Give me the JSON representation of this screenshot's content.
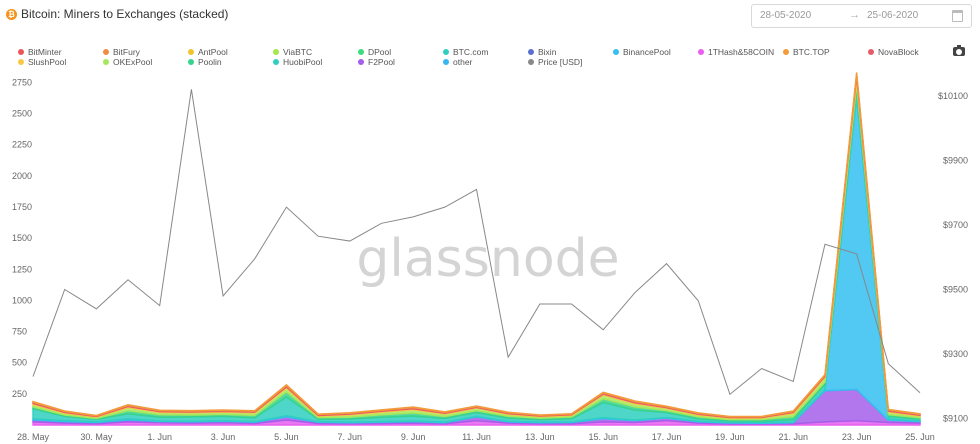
{
  "header": {
    "title": "Bitcoin: Miners to Exchanges (stacked)",
    "btc_symbol": "₿",
    "date_from": "28-05-2020",
    "date_arrow": "→",
    "date_to": "25-06-2020"
  },
  "watermark": "glassnode",
  "icons": {
    "header": "bitcoin-icon",
    "date": "calendar-icon",
    "export": "camera-icon"
  },
  "colors": {
    "BitMinter": "#e8575a",
    "BitFury": "#f28b46",
    "AntPool": "#f2c230",
    "ViaBTC": "#a4e84c",
    "DPool": "#3ddc7a",
    "BTC.com": "#2fcfc0",
    "Bixin": "#5a6fd0",
    "BinancePool": "#34bff0",
    "1THash&58COIN": "#e85ef0",
    "BTC.TOP": "#f39a3a",
    "NovaBlock": "#e85a6a",
    "SlushPool": "#f7c843",
    "OKExPool": "#a6e85b",
    "Poolin": "#37d28c",
    "HuobiPool": "#2fcfc0",
    "F2Pool": "#a55eea",
    "other": "#35b8f2",
    "Price [USD]": "#888888"
  },
  "chart_data": {
    "type": "area",
    "title": "Bitcoin: Miners to Exchanges (stacked)",
    "legend": [
      "BitMinter",
      "BitFury",
      "AntPool",
      "ViaBTC",
      "DPool",
      "BTC.com",
      "Bixin",
      "BinancePool",
      "1THash&58COIN",
      "BTC.TOP",
      "NovaBlock",
      "SlushPool",
      "OKExPool",
      "Poolin",
      "HuobiPool",
      "F2Pool",
      "other",
      "Price [USD]"
    ],
    "legend_position": "top",
    "x_tick_labels": [
      "28. May",
      "30. May",
      "1. Jun",
      "3. Jun",
      "5. Jun",
      "7. Jun",
      "9. Jun",
      "11. Jun",
      "13. Jun",
      "15. Jun",
      "17. Jun",
      "19. Jun",
      "21. Jun",
      "23. Jun",
      "25. Jun"
    ],
    "x": [
      "2020-05-28",
      "2020-05-29",
      "2020-05-30",
      "2020-05-31",
      "2020-06-01",
      "2020-06-02",
      "2020-06-03",
      "2020-06-04",
      "2020-06-05",
      "2020-06-06",
      "2020-06-07",
      "2020-06-08",
      "2020-06-09",
      "2020-06-10",
      "2020-06-11",
      "2020-06-12",
      "2020-06-13",
      "2020-06-14",
      "2020-06-15",
      "2020-06-16",
      "2020-06-17",
      "2020-06-18",
      "2020-06-19",
      "2020-06-20",
      "2020-06-21",
      "2020-06-22",
      "2020-06-23",
      "2020-06-24",
      "2020-06-25"
    ],
    "y_left": {
      "ticks": [
        250,
        500,
        750,
        1000,
        1250,
        1500,
        1750,
        2000,
        2250,
        2500,
        2750
      ],
      "range": [
        0,
        2850
      ]
    },
    "y_right": {
      "ticks": [
        "$9100",
        "$9300",
        "$9500",
        "$9700",
        "$9900",
        "$10100"
      ],
      "range": [
        9080,
        10180
      ]
    },
    "grid": false,
    "series": [
      {
        "name": "1THash&58COIN",
        "values": [
          25,
          15,
          10,
          25,
          18,
          15,
          18,
          12,
          40,
          12,
          10,
          12,
          15,
          10,
          35,
          15,
          10,
          10,
          25,
          20,
          35,
          15,
          8,
          8,
          10,
          25,
          35,
          20,
          15
        ]
      },
      {
        "name": "F2Pool",
        "values": [
          15,
          12,
          10,
          15,
          10,
          10,
          12,
          10,
          25,
          10,
          8,
          10,
          12,
          8,
          30,
          10,
          8,
          10,
          25,
          15,
          20,
          10,
          8,
          6,
          8,
          250,
          250,
          18,
          12
        ]
      },
      {
        "name": "BinancePool",
        "values": [
          10,
          8,
          5,
          10,
          5,
          5,
          5,
          5,
          10,
          5,
          5,
          5,
          5,
          5,
          5,
          5,
          5,
          5,
          10,
          5,
          5,
          5,
          5,
          5,
          5,
          10,
          2350,
          10,
          5
        ]
      },
      {
        "name": "HuobiPool",
        "values": [
          80,
          35,
          20,
          40,
          30,
          35,
          35,
          30,
          150,
          20,
          25,
          35,
          40,
          30,
          30,
          25,
          20,
          25,
          120,
          80,
          40,
          20,
          12,
          12,
          20,
          40,
          60,
          20,
          15
        ]
      },
      {
        "name": "Poolin",
        "values": [
          15,
          10,
          8,
          25,
          20,
          15,
          15,
          20,
          40,
          12,
          15,
          20,
          25,
          15,
          15,
          15,
          12,
          15,
          30,
          25,
          15,
          15,
          10,
          12,
          25,
          20,
          40,
          15,
          10
        ]
      },
      {
        "name": "OKExPool",
        "values": [
          20,
          15,
          10,
          25,
          18,
          18,
          18,
          20,
          30,
          12,
          18,
          20,
          25,
          20,
          20,
          15,
          12,
          12,
          30,
          25,
          18,
          15,
          12,
          12,
          25,
          35,
          40,
          20,
          15
        ]
      },
      {
        "name": "SlushPool",
        "values": [
          8,
          6,
          5,
          8,
          6,
          6,
          6,
          6,
          10,
          5,
          6,
          8,
          8,
          6,
          6,
          6,
          5,
          5,
          8,
          8,
          6,
          6,
          5,
          5,
          8,
          10,
          25,
          8,
          6
        ]
      },
      {
        "name": "NovaBlock",
        "values": [
          10,
          8,
          6,
          10,
          8,
          8,
          8,
          8,
          12,
          8,
          8,
          8,
          10,
          8,
          8,
          8,
          6,
          6,
          10,
          10,
          8,
          8,
          6,
          6,
          8,
          10,
          20,
          10,
          8
        ]
      },
      {
        "name": "BTC.TOP",
        "values": [
          5,
          4,
          3,
          5,
          4,
          4,
          4,
          4,
          6,
          4,
          4,
          4,
          5,
          4,
          4,
          4,
          3,
          3,
          5,
          5,
          4,
          4,
          3,
          3,
          4,
          5,
          10,
          5,
          4
        ]
      },
      {
        "name": "Price [USD]",
        "axis": "right",
        "values": [
          9230,
          9500,
          9440,
          9530,
          9450,
          10120,
          9480,
          9595,
          9755,
          9665,
          9650,
          9705,
          9725,
          9755,
          9810,
          9290,
          9455,
          9455,
          9375,
          9490,
          9580,
          9465,
          9175,
          9255,
          9215,
          9640,
          9610,
          9270,
          9180
        ]
      }
    ]
  }
}
